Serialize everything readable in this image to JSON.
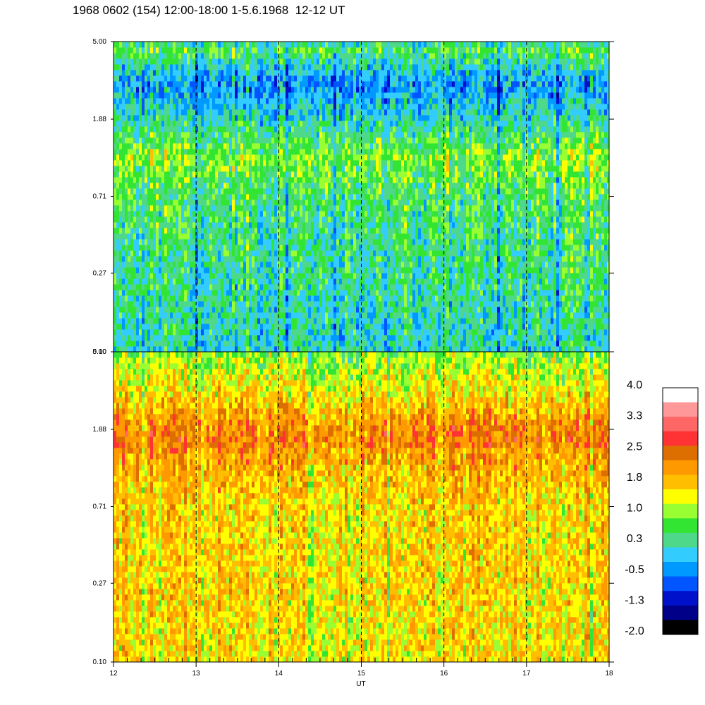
{
  "page": {
    "title": "1968 0602 (154) 12:00-18:00 1-5.6.1968  12-12 UT"
  },
  "chart_data": {
    "type": "heatmap",
    "title": "1968 0602 (154) 12:00-18:00 1-5.6.1968  12-12 UT",
    "xlabel": "UT",
    "xlim": [
      12,
      18
    ],
    "x_ticks": [
      "12",
      "13",
      "14",
      "15",
      "16",
      "17",
      "18"
    ],
    "y_scale": "log",
    "ylim": [
      0.1,
      5.0
    ],
    "y_ticks": [
      "0.10",
      "0.27",
      "0.71",
      "1.88",
      "5.00"
    ],
    "dashed_verticals_at": [
      13,
      14,
      15,
      16,
      17
    ],
    "panels": [
      {
        "id": "upper",
        "y_ticks": [
          "0.10",
          "0.27",
          "0.71",
          "1.88",
          "5.00"
        ],
        "level_profile": [
          {
            "y": 0.1,
            "level": 0.1
          },
          {
            "y": 0.27,
            "level": 0.3
          },
          {
            "y": 0.71,
            "level": 0.5
          },
          {
            "y": 1.2,
            "level": 0.9
          },
          {
            "y": 1.88,
            "level": 0.1
          },
          {
            "y": 3.0,
            "level": -0.4
          },
          {
            "y": 4.5,
            "level": 0.6
          },
          {
            "y": 5.0,
            "level": 0.2
          }
        ]
      },
      {
        "id": "lower",
        "y_ticks": [
          "0.10",
          "0.27",
          "0.71",
          "1.88",
          "5.00"
        ],
        "level_profile": [
          {
            "y": 0.1,
            "level": 1.5
          },
          {
            "y": 0.27,
            "level": 1.6
          },
          {
            "y": 0.71,
            "level": 1.6
          },
          {
            "y": 1.4,
            "level": 2.0
          },
          {
            "y": 1.6,
            "level": 2.3
          },
          {
            "y": 1.88,
            "level": 2.2
          },
          {
            "y": 3.0,
            "level": 1.5
          },
          {
            "y": 5.0,
            "level": 0.9
          }
        ]
      }
    ],
    "colorbar": {
      "labels": [
        "4.0",
        "3.3",
        "2.5",
        "1.8",
        "1.0",
        "0.3",
        "-0.5",
        "-1.3",
        "-2.0"
      ],
      "min": -2.0,
      "max": 4.0,
      "colors_top_to_bottom": [
        "#ffffff",
        "#ff9999",
        "#ff6666",
        "#ff3333",
        "#dd6f00",
        "#ff9900",
        "#ffbf00",
        "#ffff00",
        "#99ff33",
        "#33e533",
        "#4dd88a",
        "#33ccff",
        "#0099ff",
        "#0055ff",
        "#0011cc",
        "#000088",
        "#000000"
      ]
    }
  }
}
